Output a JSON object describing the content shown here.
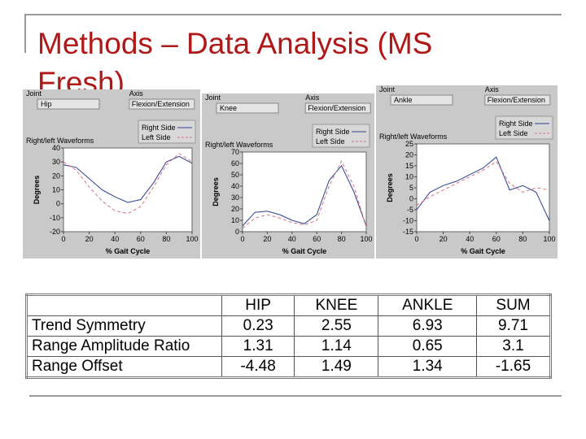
{
  "title": "Methods – Data Analysis (MS Fresh)",
  "chart_data": [
    {
      "type": "line",
      "joint_label": "Joint",
      "joint": "Hip",
      "axis_label": "Axis",
      "axis": "Flexion/Extension",
      "title": "Right/left Waveforms",
      "y_label": "Degrees",
      "x_label": "% Gait Cycle",
      "x": [
        0,
        10,
        20,
        30,
        40,
        50,
        60,
        70,
        80,
        90,
        100
      ],
      "series": [
        {
          "name": "Right Side",
          "color": "#2c3f8f",
          "line_style": "solid",
          "values": [
            28,
            26,
            18,
            10,
            5,
            1,
            3,
            15,
            30,
            34,
            29
          ]
        },
        {
          "name": "Left Side",
          "color": "#d0748a",
          "line_style": "dashed",
          "values": [
            30,
            24,
            12,
            2,
            -5,
            -7,
            -2,
            12,
            28,
            36,
            30
          ]
        }
      ],
      "xlim": [
        0,
        100
      ],
      "xticks": [
        0,
        20,
        40,
        60,
        80,
        100
      ],
      "ylim": [
        -20,
        40
      ],
      "yticks": [
        -20,
        -10,
        0,
        10,
        20,
        30,
        40
      ]
    },
    {
      "type": "line",
      "joint_label": "Joint",
      "joint": "Knee",
      "axis_label": "Axis",
      "axis": "Flexion/Extension",
      "title": "Right/left Waveforms",
      "y_label": "Degrees",
      "x_label": "% Gait Cycle",
      "x": [
        0,
        10,
        20,
        30,
        40,
        50,
        60,
        70,
        80,
        90,
        100
      ],
      "series": [
        {
          "name": "Right Side",
          "color": "#2c3f8f",
          "line_style": "solid",
          "values": [
            5,
            17,
            18,
            15,
            10,
            7,
            15,
            45,
            58,
            35,
            5
          ]
        },
        {
          "name": "Left Side",
          "color": "#d0748a",
          "line_style": "dashed",
          "values": [
            3,
            12,
            15,
            12,
            8,
            6,
            10,
            40,
            62,
            40,
            4
          ]
        }
      ],
      "xlim": [
        0,
        100
      ],
      "xticks": [
        0,
        20,
        40,
        60,
        80,
        100
      ],
      "ylim": [
        0,
        70
      ],
      "yticks": [
        0,
        10,
        20,
        30,
        40,
        50,
        60,
        70
      ]
    },
    {
      "type": "line",
      "joint_label": "Joint",
      "joint": "Ankle",
      "axis_label": "Axis",
      "axis": "Flexion/Extension",
      "title": "Right/left Waveforms",
      "y_label": "Degrees",
      "x_label": "% Gait Cycle",
      "x": [
        0,
        10,
        20,
        30,
        40,
        50,
        60,
        70,
        80,
        90,
        100
      ],
      "series": [
        {
          "name": "Right Side",
          "color": "#2c3f8f",
          "line_style": "solid",
          "values": [
            -5,
            3,
            6,
            8,
            11,
            14,
            19,
            4,
            6,
            3,
            -10
          ]
        },
        {
          "name": "Left Side",
          "color": "#d0748a",
          "line_style": "dashed",
          "values": [
            -3,
            1,
            4,
            7,
            10,
            13,
            17,
            7,
            3,
            5,
            4
          ]
        }
      ],
      "xlim": [
        0,
        100
      ],
      "xticks": [
        0,
        20,
        40,
        60,
        80,
        100
      ],
      "ylim": [
        -15,
        25
      ],
      "yticks": [
        -15,
        -10,
        -5,
        0,
        5,
        10,
        15,
        20,
        25
      ]
    }
  ],
  "table": {
    "header": [
      "HIP",
      "KNEE",
      "ANKLE",
      "SUM"
    ],
    "rows": [
      [
        "Trend Symmetry",
        0.23,
        2.55,
        6.93,
        9.71
      ],
      [
        "Range Amplitude Ratio",
        1.31,
        1.14,
        0.65,
        3.1
      ],
      [
        "Range Offset",
        -4.48,
        1.49,
        1.34,
        -1.65
      ]
    ]
  }
}
